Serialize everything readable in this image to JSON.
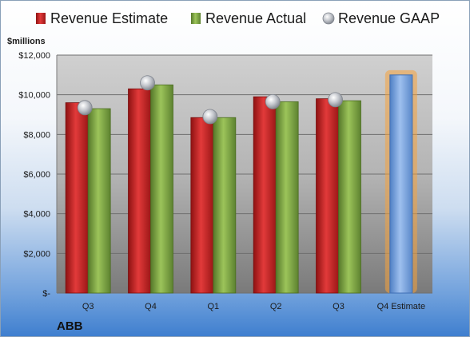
{
  "chart_data": {
    "type": "bar",
    "unit_label": "$millions",
    "brand": "ABB",
    "categories": [
      "Q3",
      "Q4",
      "Q1",
      "Q2",
      "Q3",
      "Q4 Estimate"
    ],
    "series": [
      {
        "name": "Revenue Estimate",
        "color": "#cc2222",
        "values": [
          9600,
          10300,
          8850,
          9900,
          9800,
          null
        ]
      },
      {
        "name": "Revenue Actual",
        "color": "#7aa33a",
        "values": [
          9300,
          10500,
          8850,
          9650,
          9700,
          null
        ]
      },
      {
        "name": "Revenue GAAP",
        "color": "#b8bcc4",
        "values": [
          9350,
          10600,
          8900,
          9650,
          9750,
          null
        ]
      }
    ],
    "forecast": {
      "category": "Q4 Estimate",
      "value": 11000,
      "color": "#7ea6e0",
      "glow": "#f5a33c"
    },
    "ylim": [
      0,
      12000
    ],
    "yticks": [
      {
        "value": 0,
        "label": "$-"
      },
      {
        "value": 2000,
        "label": "$2,000"
      },
      {
        "value": 4000,
        "label": "$4,000"
      },
      {
        "value": 6000,
        "label": "$6,000"
      },
      {
        "value": 8000,
        "label": "$8,000"
      },
      {
        "value": 10000,
        "label": "$10,000"
      },
      {
        "value": 12000,
        "label": "$12,000"
      }
    ],
    "legend_position": "top",
    "grid": true
  }
}
